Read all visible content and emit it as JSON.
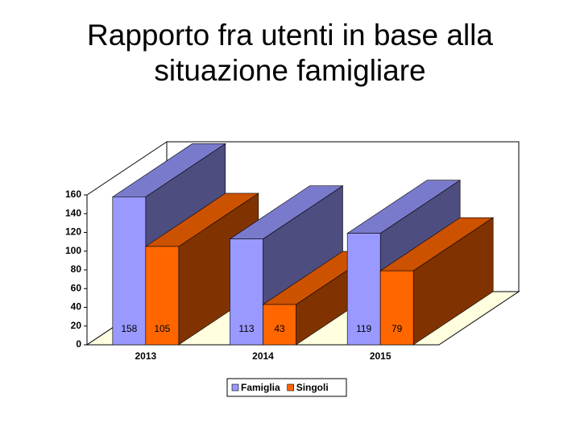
{
  "chart_data": {
    "type": "bar3d",
    "title": "Rapporto fra utenti in base alla situazione famigliare",
    "categories": [
      "2013",
      "2014",
      "2015"
    ],
    "series": [
      {
        "name": "Famiglia",
        "color": "#9999ff",
        "values": [
          158,
          113,
          119
        ]
      },
      {
        "name": "Singoli",
        "color": "#ff6600",
        "values": [
          105,
          43,
          79
        ]
      }
    ],
    "ylim": [
      0,
      160
    ],
    "yticks": [
      0,
      20,
      40,
      60,
      80,
      100,
      120,
      140,
      160
    ],
    "grid": false,
    "legend": "bottom",
    "data_labels": true
  }
}
